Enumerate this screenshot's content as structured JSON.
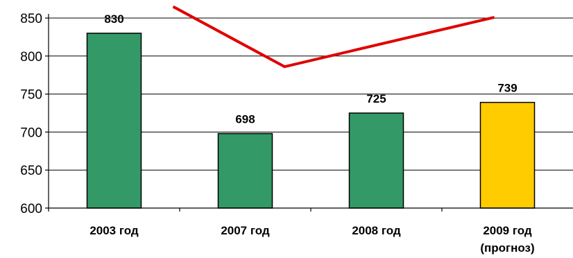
{
  "chart_data": {
    "type": "bar",
    "categories": [
      [
        "2003 год"
      ],
      [
        "2007 год"
      ],
      [
        "2008 год"
      ],
      [
        "2009 год",
        "(прогноз)"
      ]
    ],
    "values": [
      830,
      698,
      725,
      739
    ],
    "data_labels": [
      "830",
      "698",
      "725",
      "739"
    ],
    "bar_colors": [
      "#339966",
      "#339966",
      "#339966",
      "#FFCC00"
    ],
    "ylim": [
      600,
      850
    ],
    "yticks": [
      600,
      650,
      700,
      750,
      800,
      850
    ],
    "ytick_labels": [
      "600",
      "650",
      "700",
      "750",
      "800",
      "850"
    ],
    "grid": true,
    "overlay_line": {
      "color": "#E00000",
      "points": [
        [
          0.45,
          865
        ],
        [
          1.3,
          786
        ],
        [
          2.9,
          851
        ]
      ]
    }
  }
}
